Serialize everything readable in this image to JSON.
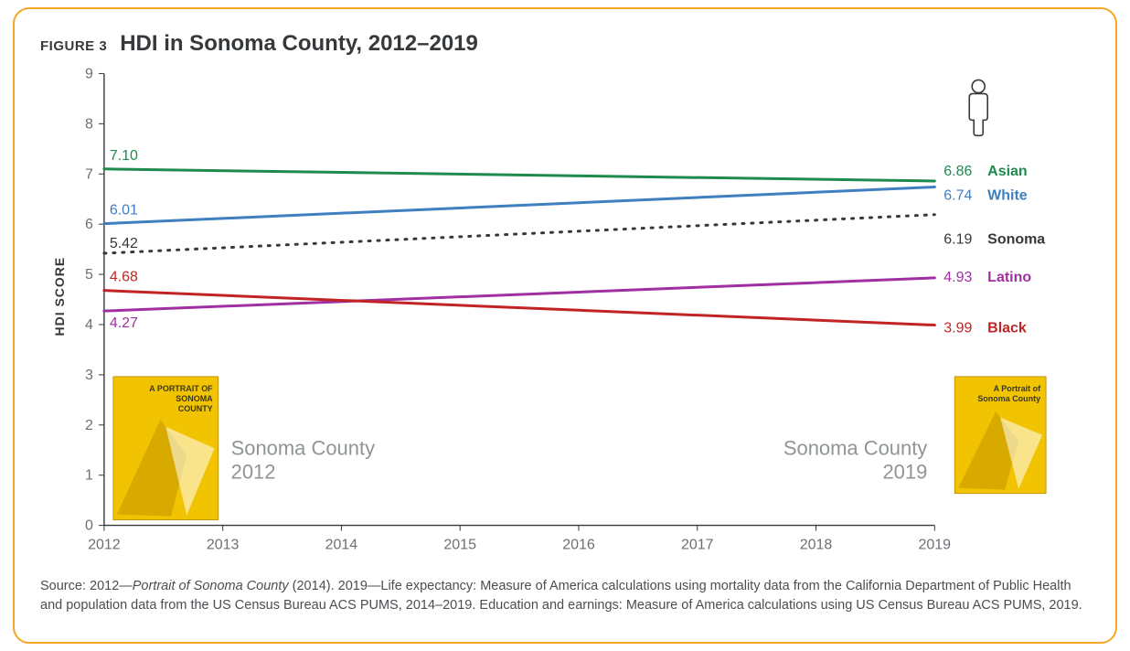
{
  "figure_label": "FIGURE 3",
  "figure_title": "HDI in Sonoma County, 2012–2019",
  "chart": {
    "type": "line",
    "background_color": "#ffffff",
    "border_color": "#f5a623",
    "y_axis": {
      "title": "HDI SCORE",
      "min": 0,
      "max": 9,
      "tick_step": 1,
      "tick_color": "#6b6f73"
    },
    "x_axis": {
      "ticks": [
        2012,
        2013,
        2014,
        2015,
        2016,
        2017,
        2018,
        2019
      ],
      "min": 2012,
      "max": 2019
    },
    "axis_line_color": "#36393c",
    "line_width": 3,
    "dotted_dash": "2,8",
    "series": [
      {
        "name": "Asian",
        "color": "#1f8a4d",
        "style": "solid",
        "start_value": 7.1,
        "end_value": 6.86
      },
      {
        "name": "White",
        "color": "#3f7fbf",
        "style": "solid",
        "start_value": 6.01,
        "end_value": 6.74
      },
      {
        "name": "Sonoma",
        "color": "#36393c",
        "style": "dotted",
        "start_value": 5.42,
        "end_value": 6.19
      },
      {
        "name": "Latino",
        "color": "#a02fa3",
        "style": "solid",
        "start_value": 4.27,
        "end_value": 4.93
      },
      {
        "name": "Black",
        "color": "#c02424",
        "style": "solid",
        "start_value": 4.68,
        "end_value": 3.99
      }
    ],
    "start_value_labels": [
      {
        "series": "Asian",
        "text": "7.10",
        "color": "#1f8a4d"
      },
      {
        "series": "White",
        "text": "6.01",
        "color": "#3f7fbf"
      },
      {
        "series": "Sonoma",
        "text": "5.42",
        "color": "#36393c"
      },
      {
        "series": "Black",
        "text": "4.68",
        "color": "#c02424"
      },
      {
        "series": "Latino",
        "text": "4.27",
        "color": "#a02fa3"
      }
    ],
    "end_labels": [
      {
        "series": "Asian",
        "value": "6.86",
        "name": "Asian",
        "color": "#1f8a4d"
      },
      {
        "series": "White",
        "value": "6.74",
        "name": "White",
        "color": "#3f7fbf"
      },
      {
        "series": "Sonoma",
        "value": "6.19",
        "name": "Sonoma",
        "color": "#36393c"
      },
      {
        "series": "Latino",
        "value": "4.93",
        "name": "Latino",
        "color": "#a02fa3"
      },
      {
        "series": "Black",
        "value": "3.99",
        "name": "Black",
        "color": "#c02424"
      }
    ],
    "annotations": [
      {
        "label_line1": "Sonoma County",
        "label_line2": "2012",
        "side": "left",
        "book_title1": "A PORTRAIT OF",
        "book_title2": "SONOMA",
        "book_title3": "COUNTY"
      },
      {
        "label_line1": "Sonoma County",
        "label_line2": "2019",
        "side": "right",
        "book_title1": "A Portrait of",
        "book_title2": "Sonoma County",
        "book_title3": ""
      }
    ],
    "person_icon_color": "#36393c"
  },
  "source_text": "Source: 2012—<em>Portrait of Sonoma County</em> (2014). 2019—Life expectancy: Measure of America calculations using mortality data from the California Department of Public Health and population data from the US Census Bureau ACS PUMS, 2014–2019. Education and earnings: Measure of America calculations using US Census Bureau ACS PUMS, 2019."
}
